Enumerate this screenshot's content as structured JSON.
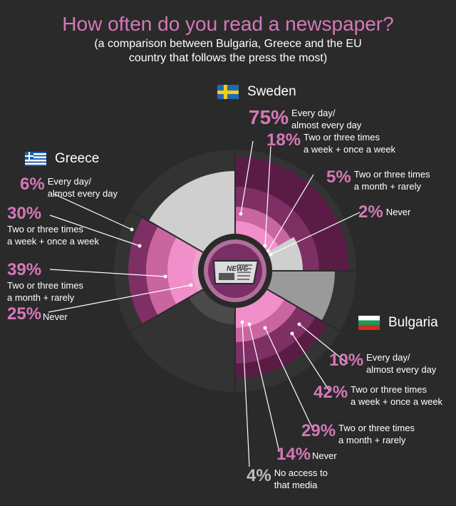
{
  "title": "How often do you read a newspaper?",
  "subtitle_line1": "(a comparison between Bulgaria, Greece and the EU",
  "subtitle_line2": "country that follows the press the most)",
  "center_icon_text": "NEWS",
  "colors": {
    "accent": "#d678b7",
    "ring1": "#f08fc9",
    "ring2": "#c9659f",
    "ring3": "#7e2f63",
    "ring4": "#5a1c45",
    "grey1": "#cfcfcf",
    "grey2": "#9a9a9a",
    "grey3": "#4a4a4a"
  },
  "chart_data": {
    "type": "radial",
    "countries": [
      {
        "name": "Sweden",
        "flag": "sweden-flag",
        "values": [
          {
            "pct": "75%",
            "label1": "Every day/",
            "label2": "almost every day"
          },
          {
            "pct": "18%",
            "label1": "Two or three times",
            "label2": "a week + once a week"
          },
          {
            "pct": "5%",
            "label1": "Two or three times",
            "label2": "a month + rarely"
          },
          {
            "pct": "2%",
            "label1": "Never",
            "label2": ""
          }
        ]
      },
      {
        "name": "Greece",
        "flag": "greece-flag",
        "values": [
          {
            "pct": "6%",
            "label1": "Every day/",
            "label2": "almost every day"
          },
          {
            "pct": "30%",
            "label1": "Two or three times",
            "label2": "a week + once a week"
          },
          {
            "pct": "39%",
            "label1": "Two or three times",
            "label2": "a month + rarely"
          },
          {
            "pct": "25%",
            "label1": "Never",
            "label2": ""
          }
        ]
      },
      {
        "name": "Bulgaria",
        "flag": "bulgaria-flag",
        "values": [
          {
            "pct": "10%",
            "label1": "Every day/",
            "label2": "almost every day"
          },
          {
            "pct": "42%",
            "label1": "Two or three times",
            "label2": "a week + once a week"
          },
          {
            "pct": "29%",
            "label1": "Two or three times",
            "label2": "a month + rarely"
          },
          {
            "pct": "14%",
            "label1": "Never",
            "label2": ""
          },
          {
            "pct": "4%",
            "label1": "No access to",
            "label2": "that media"
          }
        ]
      }
    ]
  }
}
